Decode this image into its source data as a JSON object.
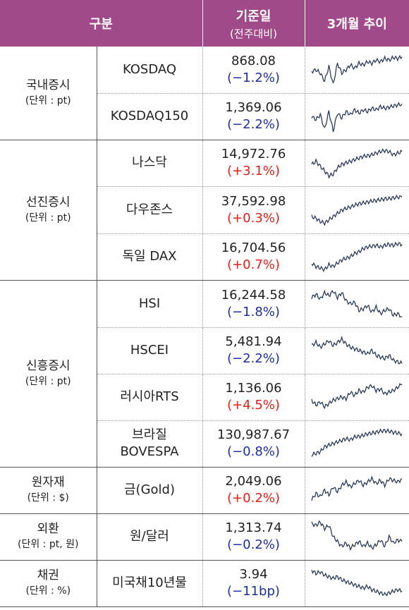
{
  "header": {
    "col1": "구분",
    "col2": "기준일",
    "col2_sub": "(전주대비)",
    "col3": "3개월 추이"
  },
  "colors": {
    "header_bg": "#a14a8a",
    "up": "#e0201b",
    "down": "#1d2f9c",
    "line": "#2b3b5a"
  },
  "groups": [
    {
      "category": "국내증시",
      "unit": "(단위 : pt)",
      "rows": [
        {
          "name": "KOSDAQ",
          "value": "868.08",
          "change": "(−1.2%)",
          "dir": "down",
          "trend_icon": "sparkline-chart"
        },
        {
          "name": "KOSDAQ150",
          "value": "1,369.06",
          "change": "(−2.2%)",
          "dir": "down",
          "trend_icon": "sparkline-chart"
        }
      ]
    },
    {
      "category": "선진증시",
      "unit": "(단위 : pt)",
      "rows": [
        {
          "name": "나스닥",
          "value": "14,972.76",
          "change": "(+3.1%)",
          "dir": "up",
          "trend_icon": "sparkline-chart"
        },
        {
          "name": "다우존스",
          "value": "37,592.98",
          "change": "(+0.3%)",
          "dir": "up",
          "trend_icon": "sparkline-chart"
        },
        {
          "name": "독일 DAX",
          "value": "16,704.56",
          "change": "(+0.7%)",
          "dir": "up",
          "trend_icon": "sparkline-chart"
        }
      ]
    },
    {
      "category": "신흥증시",
      "unit": "(단위 : pt)",
      "rows": [
        {
          "name": "HSI",
          "value": "16,244.58",
          "change": "(−1.8%)",
          "dir": "down",
          "trend_icon": "sparkline-chart"
        },
        {
          "name": "HSCEI",
          "value": "5,481.94",
          "change": "(−2.2%)",
          "dir": "down",
          "trend_icon": "sparkline-chart"
        },
        {
          "name": "러시아RTS",
          "value": "1,136.06",
          "change": "(+4.5%)",
          "dir": "up",
          "trend_icon": "sparkline-chart"
        },
        {
          "name": "브라질\nBOVESPA",
          "value": "130,987.67",
          "change": "(−0.8%)",
          "dir": "down",
          "trend_icon": "sparkline-chart"
        }
      ]
    },
    {
      "category": "원자재",
      "unit": "(단위 : $)",
      "rows": [
        {
          "name": "금(Gold)",
          "value": "2,049.06",
          "change": "(+0.2%)",
          "dir": "up",
          "trend_icon": "sparkline-chart"
        }
      ]
    },
    {
      "category": "외환",
      "unit": "(단위 : pt, 원)",
      "rows": [
        {
          "name": "원/달러",
          "value": "1,313.74",
          "change": "(−0.2%)",
          "dir": "down",
          "trend_icon": "sparkline-chart"
        }
      ]
    },
    {
      "category": "채권",
      "unit": "(단위 : %)",
      "rows": [
        {
          "name": "미국채10년물",
          "value": "3.94",
          "change": "(−11bp)",
          "dir": "down",
          "trend_icon": "sparkline-chart"
        }
      ]
    }
  ]
}
